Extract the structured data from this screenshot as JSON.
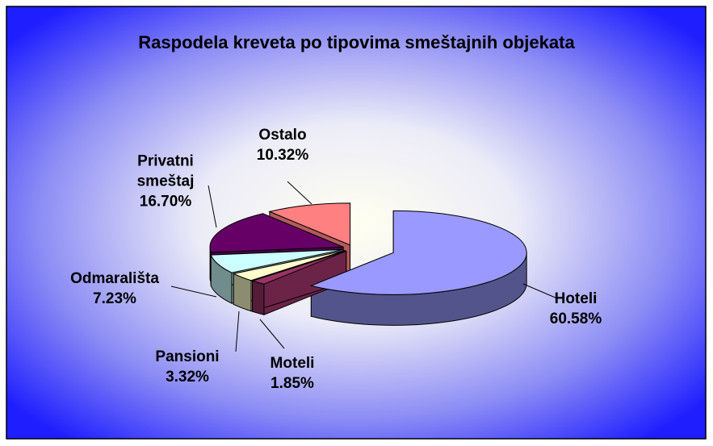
{
  "chart_data": {
    "type": "pie",
    "title": "Raspodela kreveta po tipovima smeštajnih objekata",
    "categories": [
      "Hoteli",
      "Moteli",
      "Pansioni",
      "Odmarališta",
      "Privatni smeštaj",
      "Ostalo"
    ],
    "values": [
      60.58,
      1.85,
      3.32,
      7.23,
      16.7,
      10.32
    ],
    "value_labels": [
      "60.58%",
      "1.85%",
      "3.32%",
      "7.23%",
      "16.70%",
      "10.32%"
    ],
    "colors": [
      "#9999ff",
      "#993366",
      "#ffffcc",
      "#ccffff",
      "#660066",
      "#ff8080"
    ]
  }
}
